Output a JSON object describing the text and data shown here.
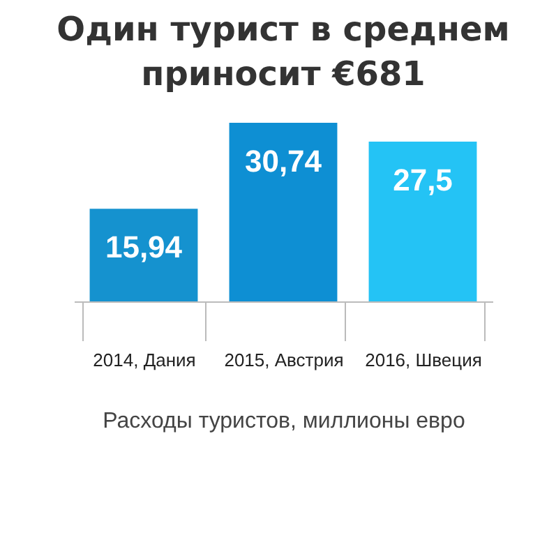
{
  "chart_data": {
    "type": "bar",
    "title": "Один турист в среднем приносит €681",
    "categories": [
      "2014, Дания",
      "2015, Австрия",
      "2016, Швеция"
    ],
    "values": [
      15.94,
      30.74,
      27.5
    ],
    "colors": [
      "#1592cf",
      "#0e8fd3",
      "#24c3f5"
    ],
    "value_labels": [
      "15,94",
      "30,74",
      "27,5"
    ],
    "xlabel": "Расходы туристов, миллионы евро"
  }
}
